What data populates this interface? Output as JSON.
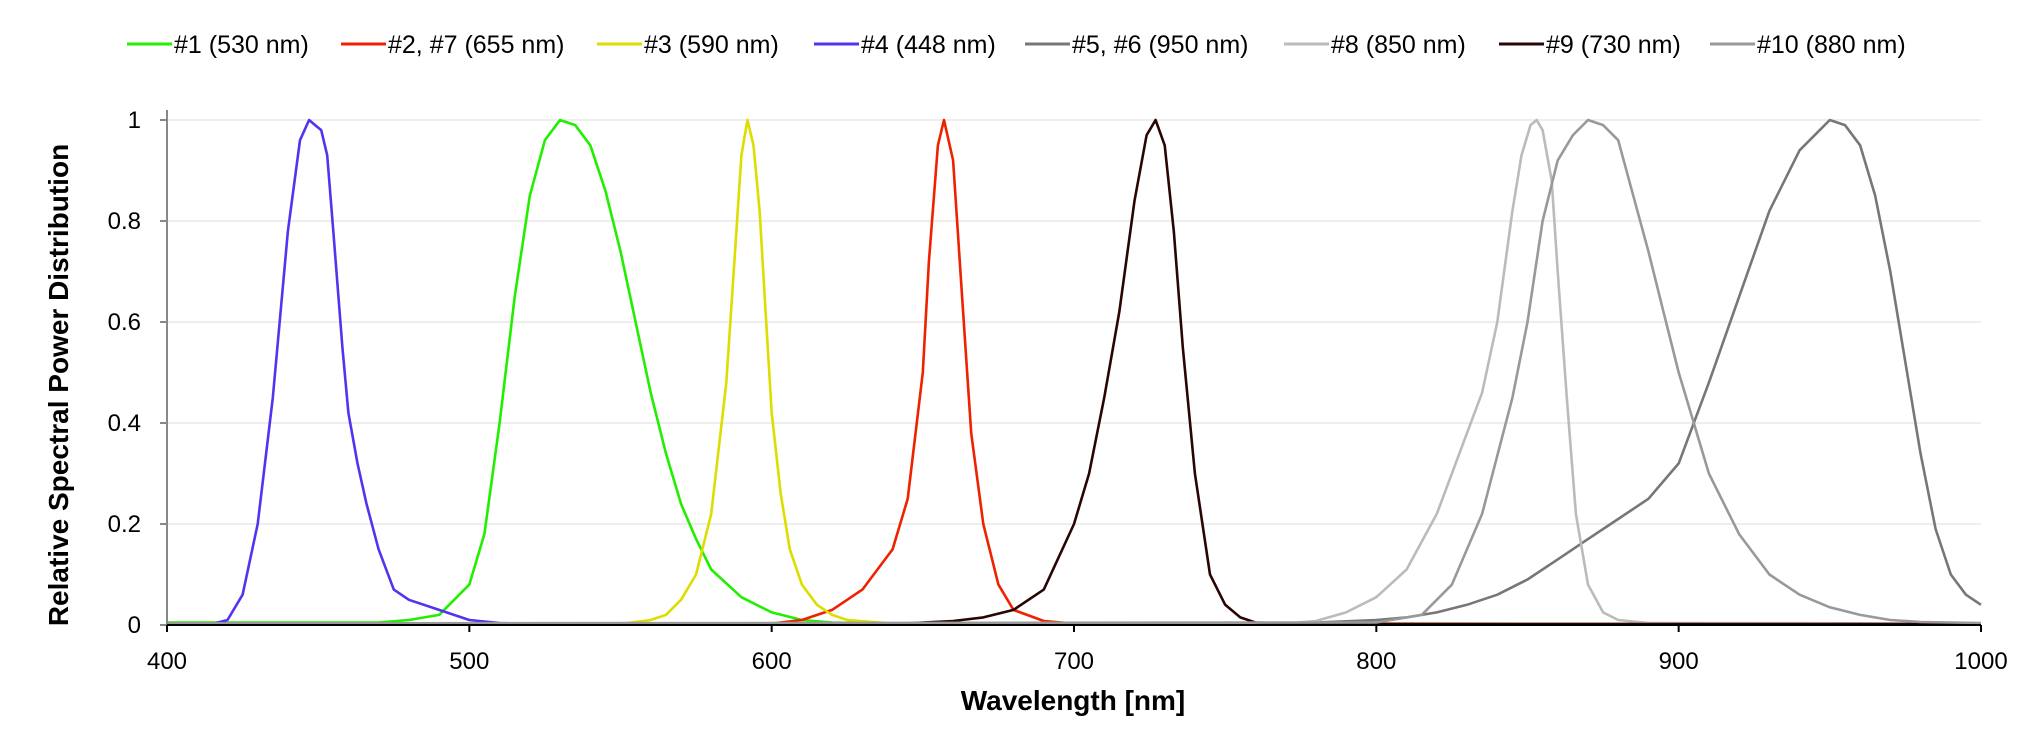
{
  "chart_data": {
    "type": "line",
    "title": "",
    "xlabel": "Wavelength [nm]",
    "ylabel": "Relative Spectral Power Distribution",
    "xlim": [
      400,
      1000
    ],
    "ylim": [
      0,
      1
    ],
    "xticks": [
      400,
      500,
      600,
      700,
      800,
      900,
      1000
    ],
    "yticks": [
      0,
      0.2,
      0.4,
      0.6,
      0.8,
      1
    ],
    "ytick_labels": [
      "0",
      "0.2",
      "0.4",
      "0.6",
      "0.8",
      "1"
    ],
    "grid": "horizontal",
    "legend_position": "top",
    "series": [
      {
        "name": "#1 (530 nm)",
        "color": "#22ee00",
        "x": [
          400,
          470,
          480,
          490,
          500,
          505,
          510,
          515,
          520,
          525,
          530,
          535,
          540,
          545,
          550,
          555,
          560,
          565,
          570,
          575,
          580,
          590,
          600,
          610,
          620,
          640,
          700,
          800,
          1000
        ],
        "y": [
          0.005,
          0.005,
          0.01,
          0.02,
          0.08,
          0.18,
          0.4,
          0.65,
          0.85,
          0.96,
          1.0,
          0.99,
          0.95,
          0.86,
          0.74,
          0.6,
          0.46,
          0.34,
          0.24,
          0.17,
          0.11,
          0.055,
          0.025,
          0.01,
          0.005,
          0.003,
          0.002,
          0.002,
          0.002
        ]
      },
      {
        "name": "#2, #7 (655 nm)",
        "color": "#ee2200",
        "x": [
          400,
          600,
          610,
          620,
          630,
          640,
          645,
          650,
          652,
          655,
          657,
          660,
          663,
          666,
          670,
          675,
          680,
          690,
          700,
          1000
        ],
        "y": [
          0.003,
          0.003,
          0.01,
          0.03,
          0.07,
          0.15,
          0.25,
          0.5,
          0.72,
          0.95,
          1.0,
          0.92,
          0.65,
          0.38,
          0.2,
          0.08,
          0.03,
          0.008,
          0.003,
          0.002
        ]
      },
      {
        "name": "#3 (590 nm)",
        "color": "#dddd00",
        "x": [
          400,
          550,
          560,
          565,
          570,
          575,
          580,
          585,
          588,
          590,
          592,
          594,
          596,
          598,
          600,
          603,
          606,
          610,
          615,
          620,
          625,
          640,
          1000
        ],
        "y": [
          0.002,
          0.002,
          0.01,
          0.02,
          0.05,
          0.1,
          0.22,
          0.48,
          0.75,
          0.93,
          1.0,
          0.95,
          0.82,
          0.62,
          0.42,
          0.26,
          0.15,
          0.08,
          0.04,
          0.02,
          0.01,
          0.003,
          0.002
        ]
      },
      {
        "name": "#4 (448 nm)",
        "color": "#5533ee",
        "x": [
          400,
          415,
          420,
          425,
          430,
          435,
          440,
          444,
          447,
          449,
          451,
          453,
          455,
          458,
          460,
          463,
          466,
          470,
          475,
          480,
          490,
          500,
          510,
          520,
          1000
        ],
        "y": [
          0.002,
          0.002,
          0.01,
          0.06,
          0.2,
          0.45,
          0.78,
          0.96,
          1.0,
          0.99,
          0.98,
          0.93,
          0.78,
          0.55,
          0.42,
          0.32,
          0.24,
          0.15,
          0.07,
          0.05,
          0.03,
          0.01,
          0.004,
          0.002,
          0.002
        ]
      },
      {
        "name": "#5, #6 (950 nm)",
        "color": "#777777",
        "x": [
          400,
          760,
          780,
          800,
          810,
          820,
          830,
          840,
          850,
          860,
          870,
          880,
          890,
          900,
          910,
          920,
          930,
          940,
          950,
          955,
          960,
          965,
          970,
          975,
          980,
          985,
          990,
          995,
          1000
        ],
        "y": [
          0.003,
          0.003,
          0.005,
          0.01,
          0.015,
          0.025,
          0.04,
          0.06,
          0.09,
          0.13,
          0.17,
          0.21,
          0.25,
          0.32,
          0.48,
          0.65,
          0.82,
          0.94,
          1.0,
          0.99,
          0.95,
          0.85,
          0.7,
          0.52,
          0.34,
          0.19,
          0.1,
          0.06,
          0.04
        ]
      },
      {
        "name": "#8 (850 nm)",
        "color": "#bbbbbb",
        "x": [
          400,
          770,
          780,
          790,
          800,
          810,
          820,
          825,
          830,
          835,
          840,
          845,
          848,
          851,
          853,
          855,
          858,
          860,
          863,
          866,
          870,
          875,
          880,
          890,
          1000
        ],
        "y": [
          0.003,
          0.003,
          0.008,
          0.025,
          0.055,
          0.11,
          0.22,
          0.3,
          0.38,
          0.46,
          0.6,
          0.82,
          0.93,
          0.99,
          1.0,
          0.98,
          0.88,
          0.7,
          0.45,
          0.22,
          0.08,
          0.025,
          0.01,
          0.004,
          0.003
        ]
      },
      {
        "name": "#9 (730 nm)",
        "color": "#2a0505",
        "x": [
          400,
          640,
          660,
          670,
          680,
          690,
          700,
          705,
          710,
          715,
          720,
          724,
          727,
          730,
          733,
          736,
          740,
          745,
          750,
          755,
          760,
          780,
          1000
        ],
        "y": [
          0.002,
          0.002,
          0.008,
          0.015,
          0.03,
          0.07,
          0.2,
          0.3,
          0.45,
          0.62,
          0.84,
          0.97,
          1.0,
          0.95,
          0.78,
          0.55,
          0.3,
          0.1,
          0.04,
          0.015,
          0.005,
          0.002,
          0.002
        ]
      },
      {
        "name": "#10 (880 nm)",
        "color": "#999999",
        "x": [
          400,
          800,
          815,
          825,
          835,
          845,
          850,
          855,
          860,
          865,
          870,
          875,
          880,
          885,
          890,
          895,
          900,
          910,
          920,
          930,
          940,
          950,
          960,
          970,
          980,
          1000
        ],
        "y": [
          0.003,
          0.005,
          0.02,
          0.08,
          0.22,
          0.45,
          0.6,
          0.8,
          0.92,
          0.97,
          1.0,
          0.99,
          0.96,
          0.85,
          0.74,
          0.62,
          0.5,
          0.3,
          0.18,
          0.1,
          0.06,
          0.035,
          0.02,
          0.01,
          0.006,
          0.004
        ]
      }
    ]
  }
}
